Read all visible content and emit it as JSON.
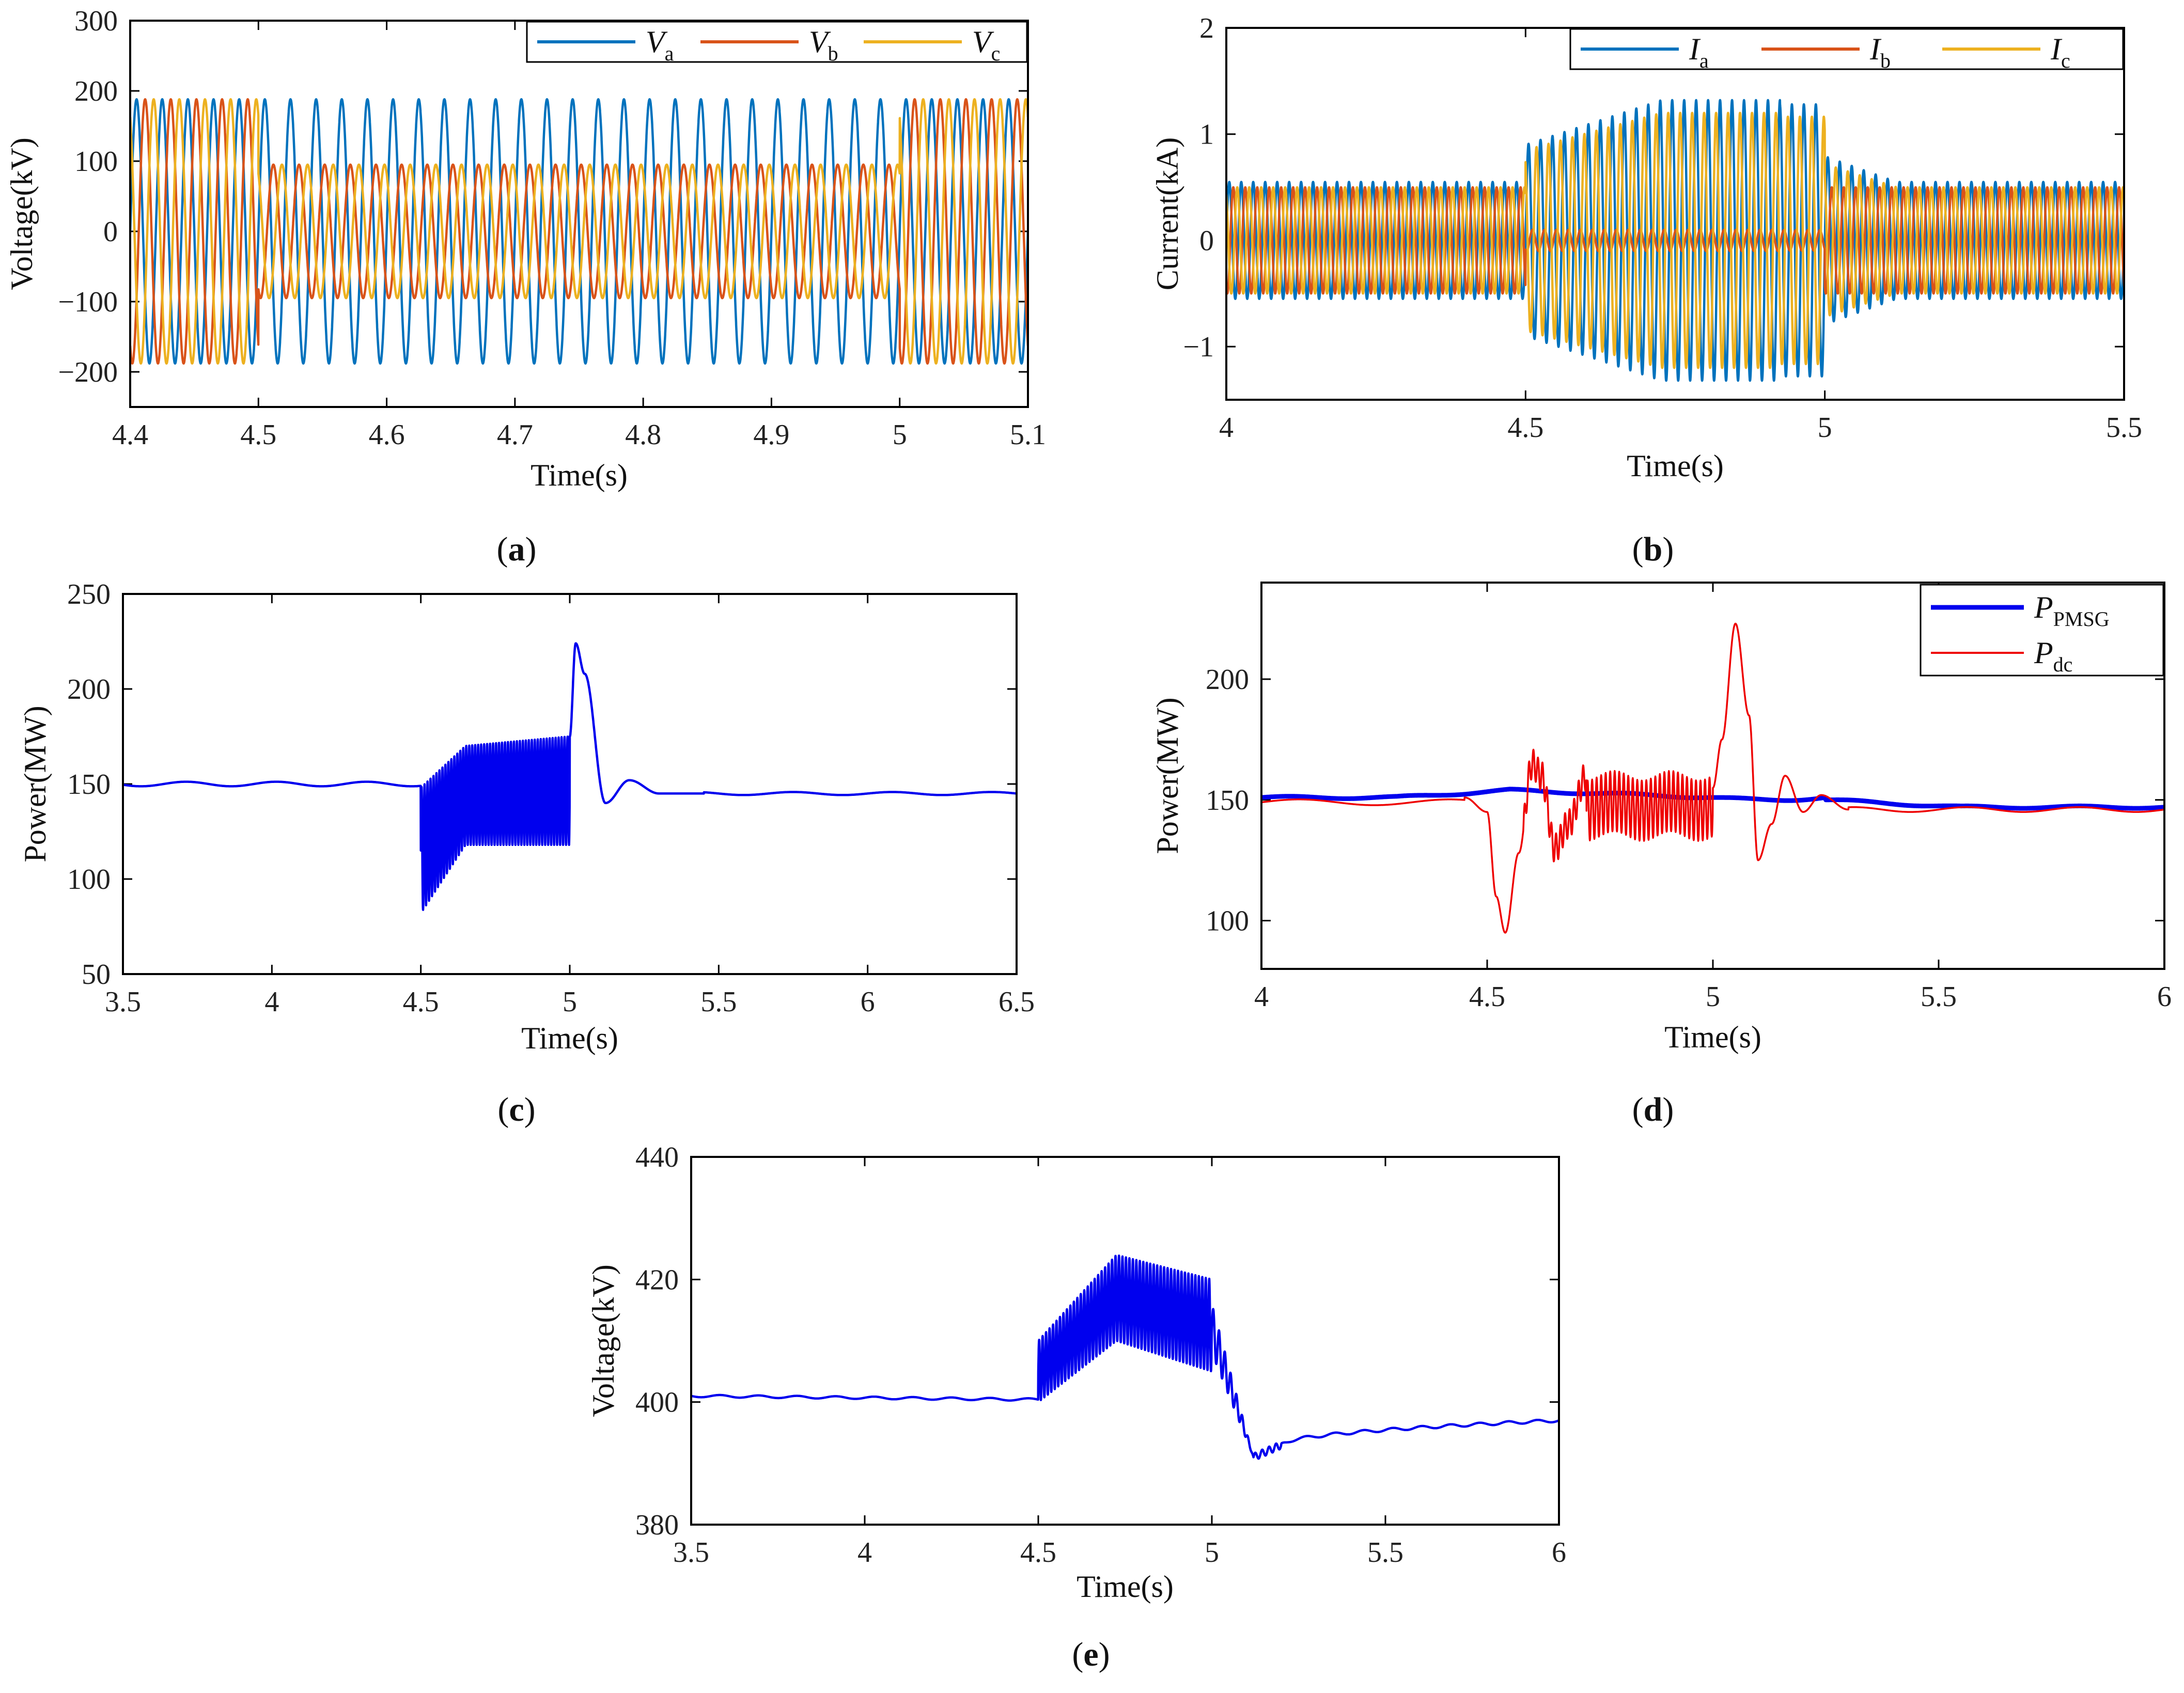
{
  "colors": {
    "va": "#0072BD",
    "vb": "#D95319",
    "vc": "#EDB120",
    "blue": "#0000EE",
    "red": "#EE0000",
    "axis": "#000000"
  },
  "chart_data": [
    {
      "id": "a",
      "label_prefix": "(",
      "label_letter": "a",
      "label_suffix": ")",
      "type": "line",
      "title": "",
      "xlabel": "Time(s)",
      "ylabel": "Voltage(kV)",
      "xlim": [
        4.4,
        5.1
      ],
      "ylim": [
        -250,
        300
      ],
      "xticks": [
        4.4,
        4.5,
        4.6,
        4.7,
        4.8,
        4.9,
        5.0,
        5.1
      ],
      "xtick_labels": [
        "4.4",
        "4.5",
        "4.6",
        "4.7",
        "4.8",
        "4.9",
        "5",
        "5.1"
      ],
      "yticks": [
        -200,
        -100,
        0,
        100,
        200,
        300
      ],
      "ytick_labels": [
        "−200",
        "−100",
        "0",
        "100",
        "200",
        "300"
      ],
      "legend_position": "top-right",
      "fault_interval": [
        4.5,
        5.0
      ],
      "frequency_hz": 50,
      "series": [
        {
          "name": "V",
          "sub": "a",
          "color_key": "va",
          "amp_normal": 188,
          "amp_fault": 188,
          "phase_deg": 0
        },
        {
          "name": "V",
          "sub": "b",
          "color_key": "vb",
          "amp_normal": 188,
          "amp_fault": 95,
          "phase_deg": -120
        },
        {
          "name": "V",
          "sub": "c",
          "color_key": "vc",
          "amp_normal": 188,
          "amp_fault": 95,
          "phase_deg": 120
        }
      ]
    },
    {
      "id": "b",
      "label_prefix": "(",
      "label_letter": "b",
      "label_suffix": ")",
      "type": "line",
      "title": "",
      "xlabel": "Time(s)",
      "ylabel": "Current(kA)",
      "xlim": [
        4.0,
        5.5
      ],
      "ylim": [
        -1.5,
        2.0
      ],
      "xticks": [
        4.0,
        4.5,
        5.0,
        5.5
      ],
      "xtick_labels": [
        "4",
        "4.5",
        "5",
        "5.5"
      ],
      "yticks": [
        -1,
        0,
        1,
        2
      ],
      "ytick_labels": [
        "−1",
        "0",
        "1",
        "2"
      ],
      "legend_position": "top-right",
      "fault_interval": [
        4.5,
        5.0
      ],
      "frequency_hz": 50,
      "series": [
        {
          "name": "I",
          "sub": "a",
          "color_key": "va",
          "amp_normal": 0.55,
          "amp_fault_start": 0.9,
          "amp_fault_end": 1.32,
          "phase_deg": 0
        },
        {
          "name": "I",
          "sub": "b",
          "color_key": "vb",
          "amp_normal": 0.5,
          "amp_fault_start": 0.1,
          "amp_fault_end": 0.1,
          "phase_deg": -120
        },
        {
          "name": "I",
          "sub": "c",
          "color_key": "vc",
          "amp_normal": 0.5,
          "amp_fault_start": 0.85,
          "amp_fault_end": 1.2,
          "phase_deg": 120
        }
      ]
    },
    {
      "id": "c",
      "label_prefix": "(",
      "label_letter": "c",
      "label_suffix": ")",
      "type": "line",
      "title": "",
      "xlabel": "Time(s)",
      "ylabel": "Power(MW)",
      "xlim": [
        3.5,
        6.5
      ],
      "ylim": [
        50,
        250
      ],
      "xticks": [
        3.5,
        4.0,
        4.5,
        5.0,
        5.5,
        6.0,
        6.5
      ],
      "xtick_labels": [
        "3.5",
        "4",
        "4.5",
        "5",
        "5.5",
        "6",
        "6.5"
      ],
      "yticks": [
        50,
        100,
        150,
        200,
        250
      ],
      "ytick_labels": [
        "50",
        "100",
        "150",
        "200",
        "250"
      ],
      "series": [
        {
          "name": "Power",
          "color_key": "blue",
          "pre_fault_level": 150,
          "fault_band_start": [
            82,
            148
          ],
          "fault_band_mid": [
            118,
            170
          ],
          "fault_band_end": [
            118,
            175
          ],
          "post_fault_peaks": [
            [
              5.02,
              224
            ],
            [
              5.05,
              208
            ],
            [
              5.12,
              140
            ],
            [
              5.2,
              152
            ],
            [
              5.3,
              145
            ]
          ],
          "post_fault_level": 145
        }
      ]
    },
    {
      "id": "d",
      "label_prefix": "(",
      "label_letter": "d",
      "label_suffix": ")",
      "type": "line",
      "title": "",
      "xlabel": "Time(s)",
      "ylabel": "Power(MW)",
      "xlim": [
        4.0,
        6.0
      ],
      "ylim": [
        80,
        240
      ],
      "xticks": [
        4.0,
        4.5,
        5.0,
        5.5,
        6.0
      ],
      "xtick_labels": [
        "4",
        "4.5",
        "5",
        "5.5",
        "6"
      ],
      "yticks": [
        100,
        150,
        200
      ],
      "ytick_labels": [
        "100",
        "150",
        "200"
      ],
      "legend_position": "top-right",
      "series": [
        {
          "name": "P",
          "sub": "PMSG",
          "color_key": "blue",
          "level_pre": 151,
          "bump": [
            4.55,
            154
          ],
          "level_post": 147
        },
        {
          "name": "P",
          "sub": "dc",
          "color_key": "red",
          "level_pre": 150,
          "dip": [
            4.54,
            95
          ],
          "fault_band": [
            135,
            160
          ],
          "peak": [
            5.05,
            223
          ],
          "dip2": [
            5.1,
            125
          ],
          "level_post": 146
        }
      ]
    },
    {
      "id": "e",
      "label_prefix": "(",
      "label_letter": "e",
      "label_suffix": ")",
      "type": "line",
      "title": "",
      "xlabel": "Time(s)",
      "ylabel": "Voltage(kV)",
      "xlim": [
        3.5,
        6.0
      ],
      "ylim": [
        380,
        440
      ],
      "xticks": [
        3.5,
        4.0,
        4.5,
        5.0,
        5.5,
        6.0
      ],
      "xtick_labels": [
        "3.5",
        "4",
        "4.5",
        "5",
        "5.5",
        "6"
      ],
      "yticks": [
        380,
        400,
        420,
        440
      ],
      "ytick_labels": [
        "380",
        "400",
        "420",
        "440"
      ],
      "series": [
        {
          "name": "Voltage",
          "color_key": "blue",
          "pre_fault_level": 401,
          "fault_band_start": [
            400,
            410
          ],
          "fault_band_peak": [
            410,
            424
          ],
          "fault_band_end": [
            405,
            420
          ],
          "post_min": [
            5.12,
            391
          ],
          "post_level_end": 397
        }
      ]
    }
  ]
}
